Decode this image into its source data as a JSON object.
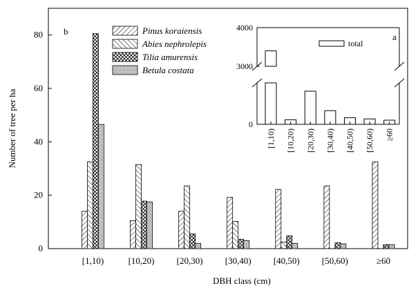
{
  "chart_data": [
    {
      "type": "bar",
      "panel_label": "b",
      "xlabel": "DBH class (cm)",
      "ylabel": "Number of tree per ha",
      "ylim": [
        0,
        90
      ],
      "yticks": [
        0,
        20,
        40,
        60,
        80
      ],
      "categories": [
        "[1,10)",
        "[10,20)",
        "[20,30)",
        "[30,40)",
        "[40,50)",
        "[50,60)",
        "≥60"
      ],
      "series": [
        {
          "name": "Pinus koraiensis",
          "pattern": "hatch-forward",
          "values": [
            14,
            10.5,
            14,
            19.2,
            22.2,
            23.5,
            32.5
          ]
        },
        {
          "name": "Abies nephrolepis",
          "pattern": "hatch-back",
          "values": [
            32.5,
            31.5,
            23.5,
            10.2,
            2.5,
            0,
            0
          ]
        },
        {
          "name": "Tilia amurensis",
          "pattern": "crosshatch",
          "values": [
            80.5,
            17.8,
            5.5,
            3.5,
            4.8,
            2.2,
            1.5
          ]
        },
        {
          "name": "Betula costata",
          "pattern": "dots",
          "values": [
            46.5,
            17.5,
            2,
            3,
            2,
            1.8,
            1.5
          ]
        }
      ],
      "legend_position": "top-center",
      "grid": false
    },
    {
      "type": "bar",
      "panel_label": "a",
      "categories": [
        "[1,10)",
        "[10,20)",
        "[20,30)",
        "[30,40)",
        "[40,50)",
        "[50,60)",
        "≥60"
      ],
      "series": [
        {
          "name": "total",
          "values": [
            3400,
            110,
            800,
            330,
            160,
            130,
            100
          ]
        }
      ],
      "ylim": [
        0,
        4000
      ],
      "broken_axis": true,
      "yticks": [
        0,
        3000,
        4000
      ],
      "legend_position": "top-center",
      "grid": false
    }
  ]
}
